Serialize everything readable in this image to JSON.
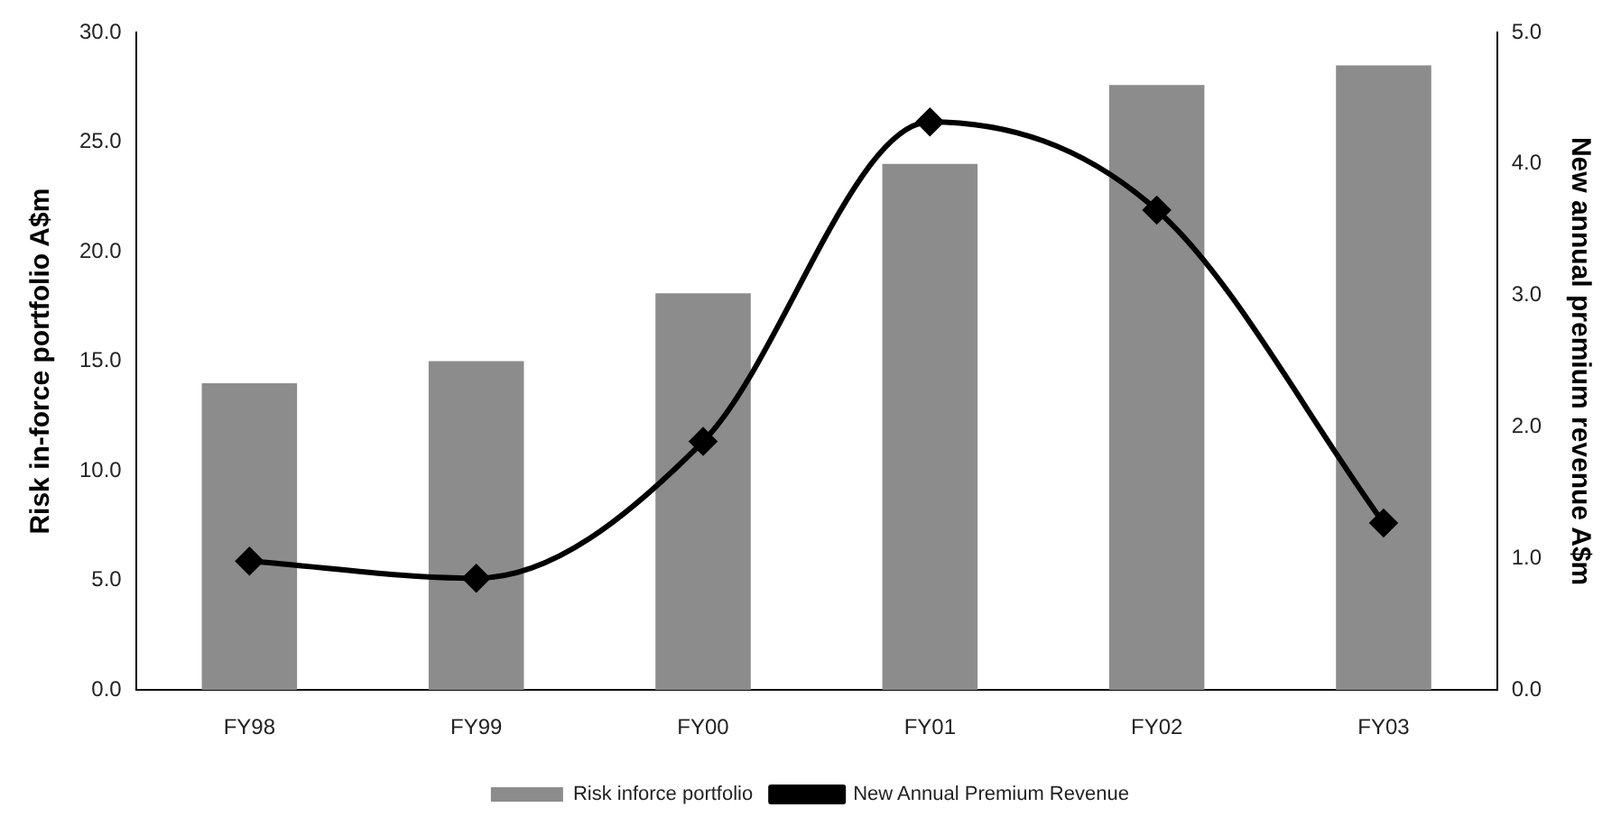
{
  "chart_data": {
    "type": "bar",
    "categories": [
      "FY98",
      "FY99",
      "FY00",
      "FY01",
      "FY02",
      "FY03"
    ],
    "ylabel": "Risk in-force portfolio A$m",
    "y2label": "New annual premium revenue A$m",
    "ylim": [
      0,
      30
    ],
    "yticks": [
      {
        "value": 0,
        "label": "0.0"
      },
      {
        "value": 5,
        "label": "5.0"
      },
      {
        "value": 10,
        "label": "10.0"
      },
      {
        "value": 15,
        "label": "15.0"
      },
      {
        "value": 20,
        "label": "20.0"
      },
      {
        "value": 25,
        "label": "25.0"
      },
      {
        "value": 30,
        "label": "30.0"
      }
    ],
    "y2lim": [
      0,
      5
    ],
    "y2ticks": [
      {
        "value": 0,
        "label": "0.0"
      },
      {
        "value": 1,
        "label": "1.0"
      },
      {
        "value": 2,
        "label": "2.0"
      },
      {
        "value": 3,
        "label": "3.0"
      },
      {
        "value": 4,
        "label": "4.0"
      },
      {
        "value": 5,
        "label": "5.0"
      }
    ],
    "series": [
      {
        "name": "Risk inforce portfolio",
        "color": "#8c8c8c",
        "values": [
          14.0,
          15.0,
          18.1,
          24.0,
          27.6,
          28.5
        ]
      },
      {
        "name": "New Annual Premium Revenue",
        "type": "line",
        "axis": "y2",
        "color": "#000000",
        "marker": "diamond",
        "values": [
          0.98,
          0.85,
          1.89,
          4.32,
          3.65,
          1.27
        ]
      }
    ],
    "grid": false,
    "legend": "bottom"
  }
}
